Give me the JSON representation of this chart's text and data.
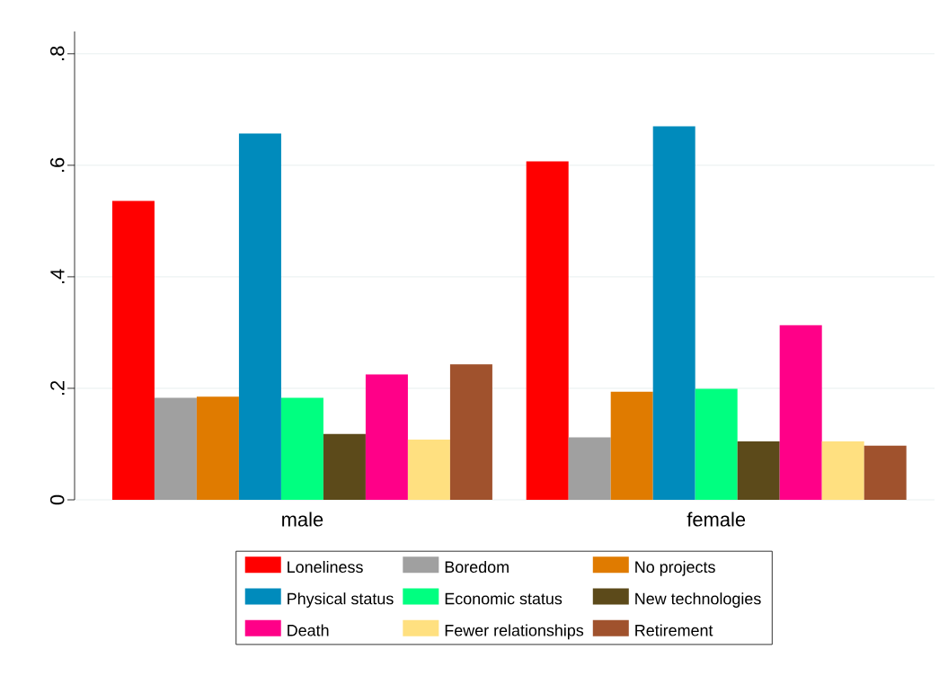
{
  "chart_data": {
    "type": "bar",
    "categories": [
      "male",
      "female"
    ],
    "series": [
      {
        "name": "Loneliness",
        "color": "#ff0000",
        "values": [
          0.536,
          0.607
        ]
      },
      {
        "name": "Boredom",
        "color": "#a0a0a0",
        "values": [
          0.183,
          0.112
        ]
      },
      {
        "name": "No projects",
        "color": "#e07b00",
        "values": [
          0.185,
          0.194
        ]
      },
      {
        "name": "Physical status",
        "color": "#008bbc",
        "values": [
          0.657,
          0.67
        ]
      },
      {
        "name": "Economic status",
        "color": "#00ff80",
        "values": [
          0.183,
          0.199
        ]
      },
      {
        "name": "New technologies",
        "color": "#5c4a1a",
        "values": [
          0.118,
          0.105
        ]
      },
      {
        "name": "Death",
        "color": "#ff0088",
        "values": [
          0.225,
          0.313
        ]
      },
      {
        "name": "Fewer relationships",
        "color": "#ffe080",
        "values": [
          0.108,
          0.105
        ]
      },
      {
        "name": "Retirement",
        "color": "#a0522d",
        "values": [
          0.243,
          0.097
        ]
      }
    ],
    "ylim": [
      0,
      0.84
    ],
    "yticks": [
      0,
      {
        "value": 0.2,
        "label": ".2"
      },
      {
        "value": 0.4,
        "label": ".4"
      },
      {
        "value": 0.6,
        "label": ".6"
      },
      {
        "value": 0.8,
        "label": ".8"
      }
    ],
    "grid": "y",
    "legend": "bottom"
  }
}
